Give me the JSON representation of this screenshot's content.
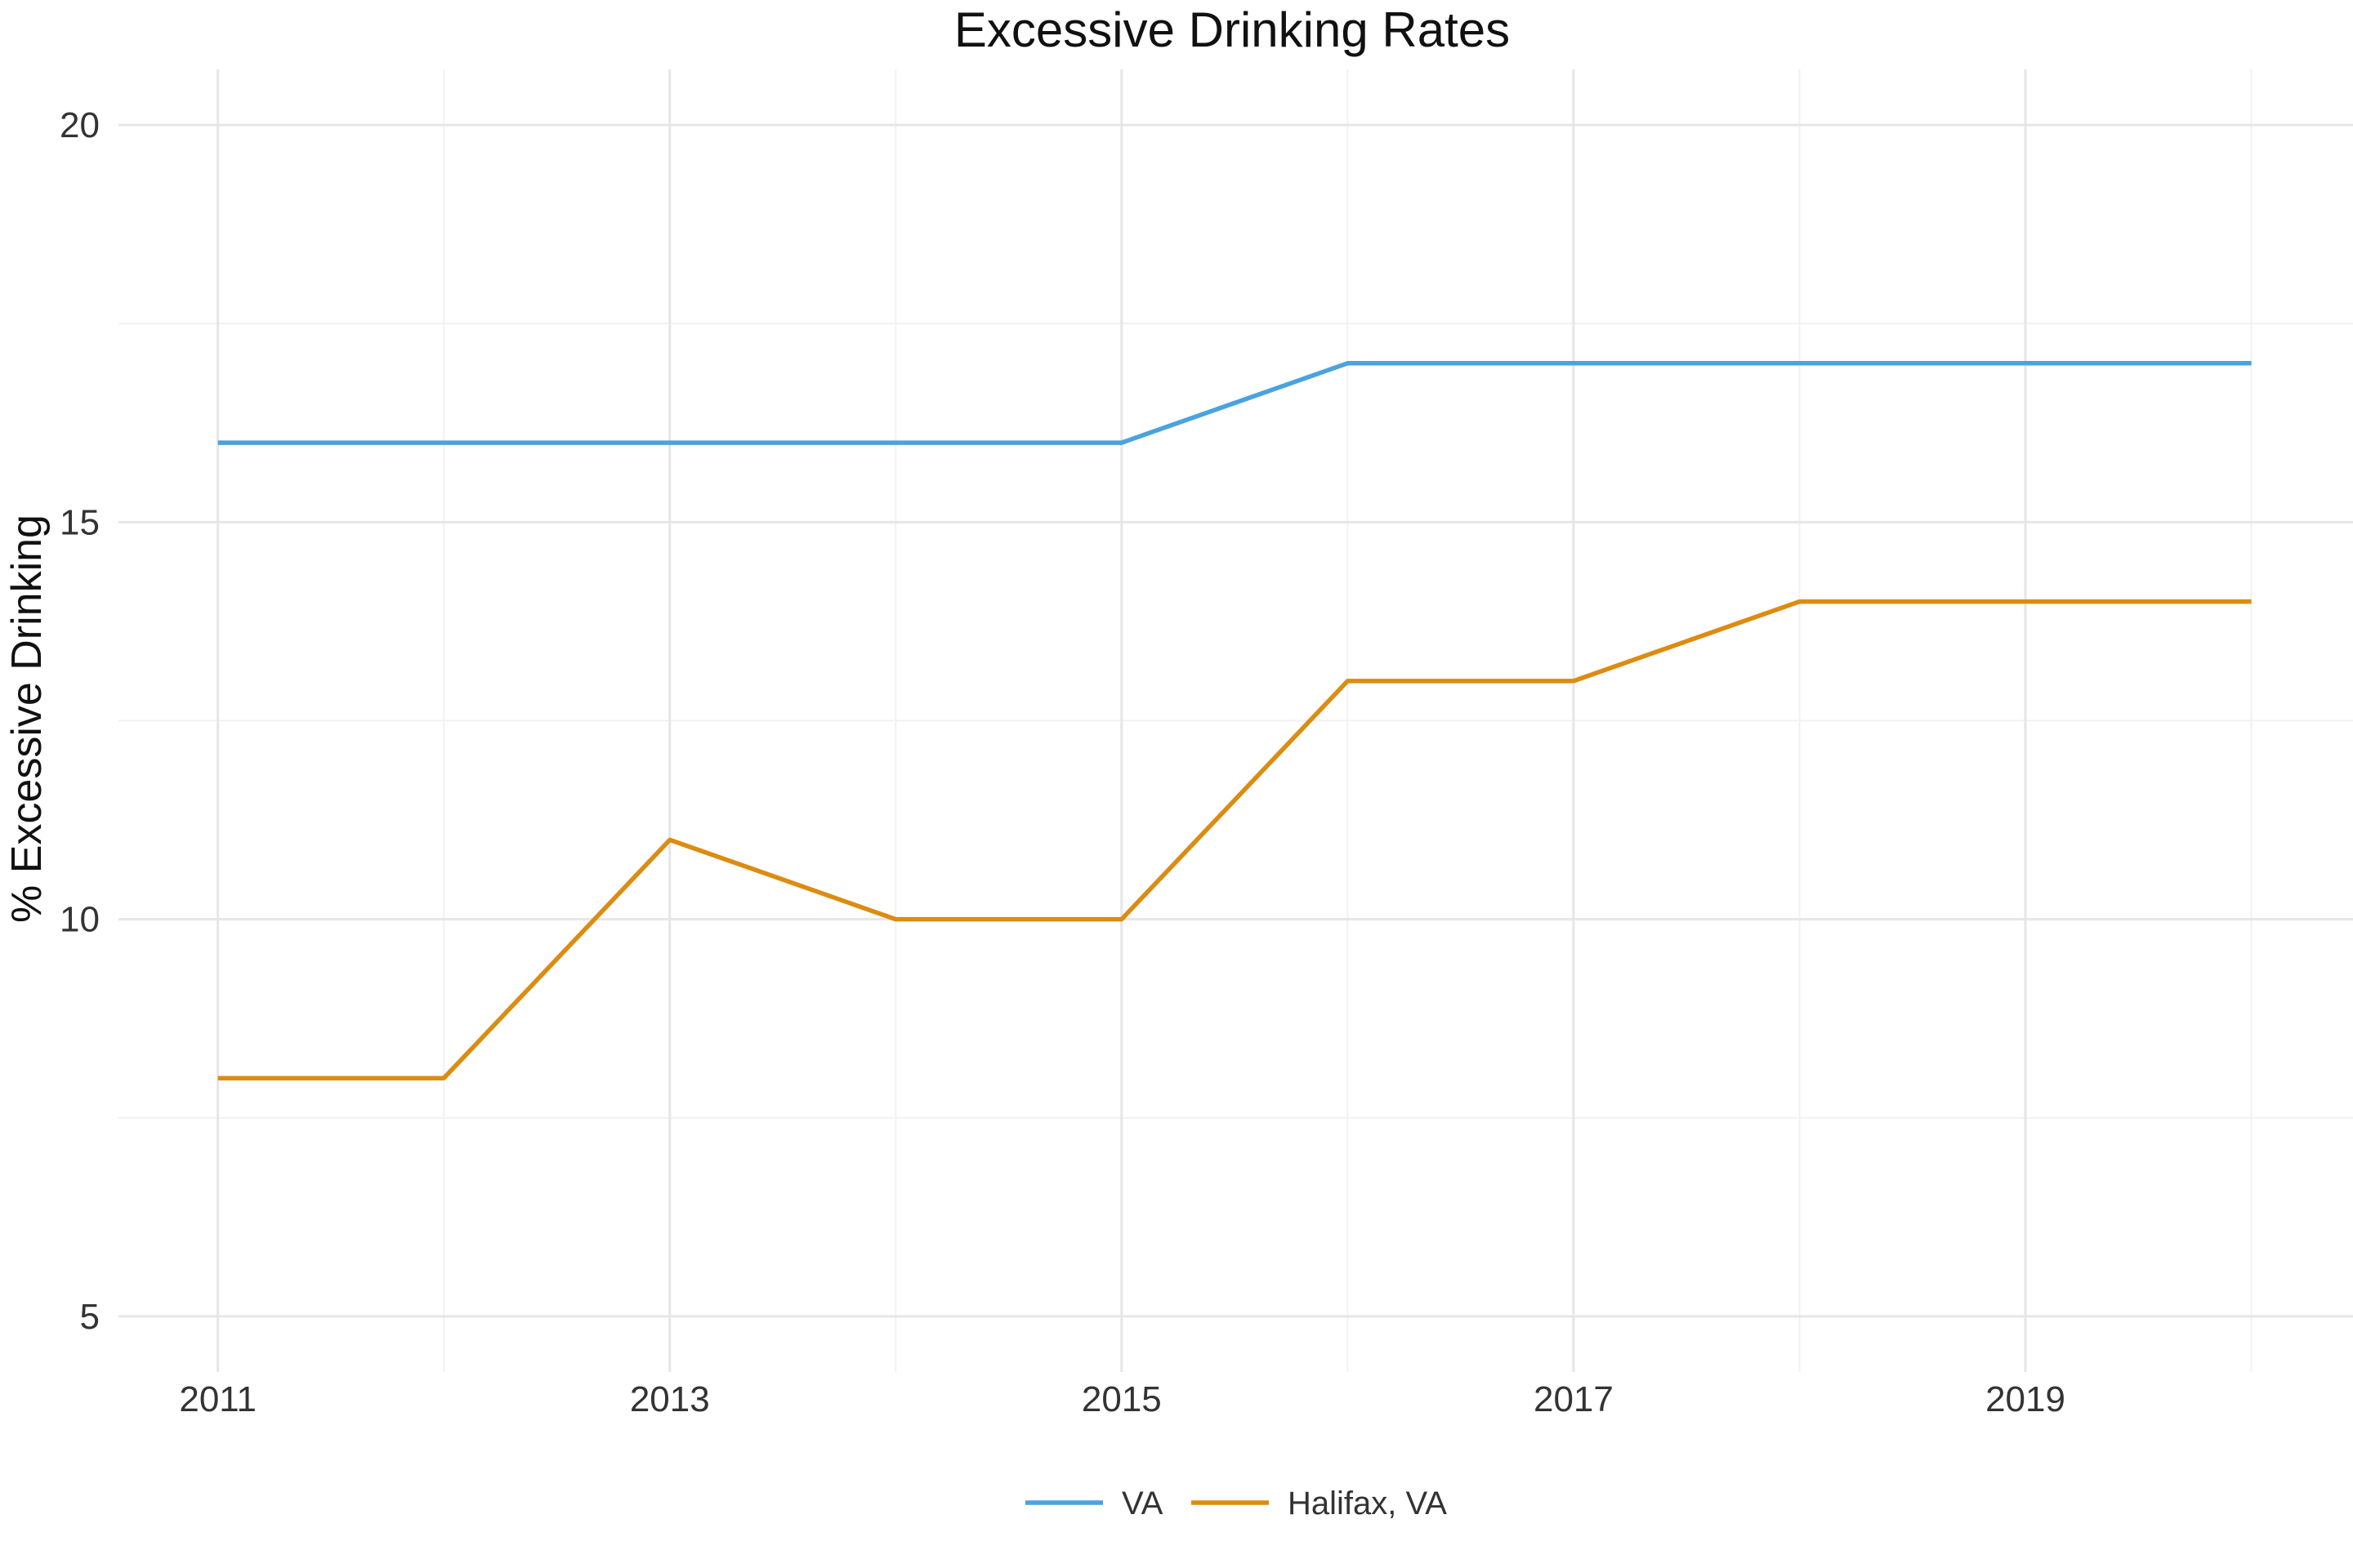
{
  "chart_data": {
    "type": "line",
    "title": "Excessive Drinking Rates",
    "xlabel": "",
    "ylabel": "% Excessive Drinking",
    "x": [
      2011,
      2012,
      2013,
      2014,
      2015,
      2016,
      2017,
      2018,
      2019,
      2020
    ],
    "xticks": [
      2011,
      2013,
      2015,
      2017,
      2019
    ],
    "yticks": [
      5,
      10,
      15,
      20
    ],
    "xlim": [
      2010.56,
      2020.45
    ],
    "ylim": [
      4.3,
      20.7
    ],
    "grid": true,
    "legend_position": "bottom",
    "series": [
      {
        "name": "VA",
        "color": "#4aa3df",
        "values": [
          16,
          16,
          16,
          16,
          16,
          17,
          17,
          17,
          17,
          17
        ]
      },
      {
        "name": "Halifax, VA",
        "color": "#dc8c11",
        "values": [
          8,
          8,
          11,
          10,
          10,
          13,
          13,
          14,
          14,
          14
        ]
      }
    ]
  }
}
